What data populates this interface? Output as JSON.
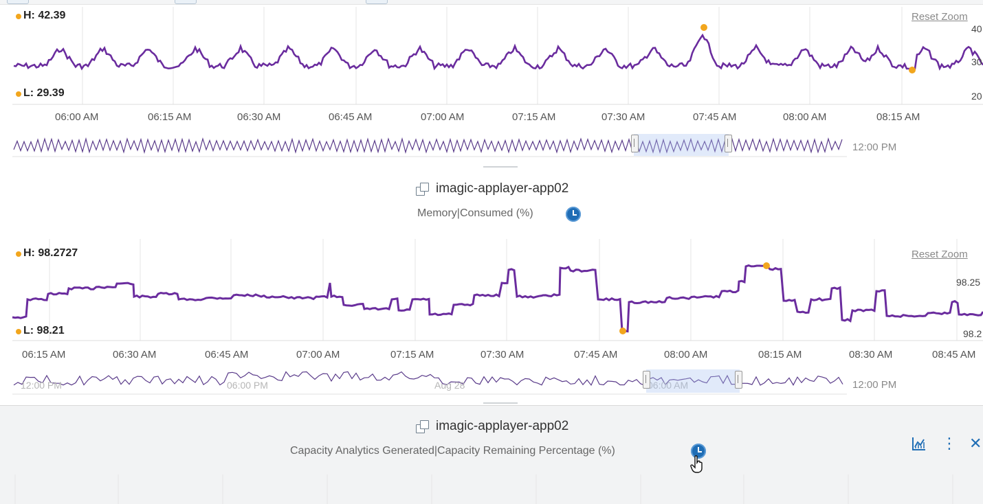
{
  "cpu_panel": {
    "reset_zoom": "Reset Zoom",
    "high_label": "H: 42.39",
    "low_label": "L: 29.39",
    "y_ticks": [
      "40",
      "30",
      "20"
    ],
    "x_ticks": [
      "06:00 AM",
      "06:15 AM",
      "06:30 AM",
      "06:45 AM",
      "07:00 AM",
      "07:15 AM",
      "07:30 AM",
      "07:45 AM",
      "08:00 AM",
      "08:15 AM"
    ],
    "navigator_label": "12:00 PM",
    "series_color": "#6a2c9e"
  },
  "mem_panel": {
    "object_name": "imagic-applayer-app02",
    "metric": "Memory|Consumed (%)",
    "reset_zoom": "Reset Zoom",
    "high_label": "H: 98.2727",
    "low_label": "L: 98.21",
    "y_ticks": [
      "98.25",
      "98.2"
    ],
    "x_ticks": [
      "06:15 AM",
      "06:30 AM",
      "06:45 AM",
      "07:00 AM",
      "07:15 AM",
      "07:30 AM",
      "07:45 AM",
      "08:00 AM",
      "08:15 AM",
      "08:30 AM",
      "08:45 AM"
    ],
    "navigator_faint_labels": [
      "12:00 PM",
      "06:00 PM",
      "Aug 28",
      "06:00 AM"
    ],
    "navigator_label": "12:00 PM",
    "series_color": "#6a2c9e"
  },
  "cap_panel": {
    "object_name": "imagic-applayer-app02",
    "metric": "Capacity Analytics Generated|Capacity Remaining Percentage (%)",
    "icons": [
      "chart-icon",
      "more-icon",
      "close-icon"
    ],
    "more_glyph": "⋮",
    "close_glyph": "✕"
  },
  "colors": {
    "accent": "#1f6db5",
    "marker": "#f2a61d",
    "series": "#6a2c9e"
  }
}
